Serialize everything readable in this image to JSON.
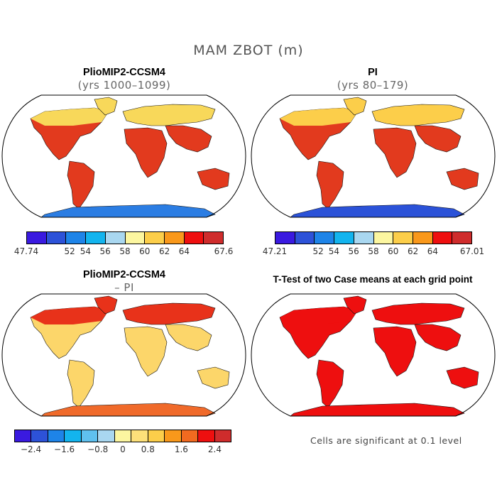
{
  "title": "MAM ZBOT (m)",
  "panels": [
    {
      "title": "PlioMIP2-CCSM4",
      "subtitle": "(yrs 1000–1099)",
      "colorbar": {
        "colors": [
          "#3a1ae0",
          "#2d52d8",
          "#1e84e8",
          "#13b4ee",
          "#a9d7f0",
          "#fcf6a0",
          "#fcce4a",
          "#f9981b",
          "#ee0f0f",
          "#cf2c2c"
        ],
        "labels": [
          "47.74",
          "52",
          "54",
          "56",
          "58",
          "60",
          "62",
          "64",
          "67.6"
        ]
      },
      "fill": {
        "land": "#e23a1e",
        "north": "#f8d85a",
        "antarctic": "#2b7de3"
      }
    },
    {
      "title": "PI",
      "subtitle": "(yrs 80–179)",
      "colorbar": {
        "colors": [
          "#3a1ae0",
          "#2d52d8",
          "#1e84e8",
          "#13b4ee",
          "#a9d7f0",
          "#fcf6a0",
          "#fcce4a",
          "#f9981b",
          "#ee0f0f",
          "#cf2c2c"
        ],
        "labels": [
          "47.21",
          "52",
          "54",
          "56",
          "58",
          "60",
          "62",
          "64",
          "67.01"
        ]
      },
      "fill": {
        "land": "#e23a1e",
        "north": "#fcce4a",
        "antarctic": "#2b52d8"
      }
    },
    {
      "title": "PlioMIP2-CCSM4",
      "subtitle": "– PI",
      "colorbar": {
        "colors": [
          "#3a1ae0",
          "#2d52d8",
          "#1e84e8",
          "#13b4ee",
          "#5fc0ee",
          "#a9d7f0",
          "#fcf6a0",
          "#fde07a",
          "#fcce4a",
          "#f9981b",
          "#f26a20",
          "#ee0f0f",
          "#cf2c2c"
        ],
        "labels": [
          "−2.4",
          "−1.6",
          "−0.8",
          "0",
          "0.8",
          "1.6",
          "2.4"
        ]
      },
      "fill": {
        "land": "#fcd66a",
        "north": "#e8321a",
        "antarctic": "#f06a2a"
      }
    },
    {
      "title": "T-Test of two Case means at each grid point",
      "note": "Cells are significant at 0.1 level",
      "fill": {
        "land": "#ee0f0f",
        "north": "#ee0f0f",
        "antarctic": "#ee0f0f"
      }
    }
  ]
}
